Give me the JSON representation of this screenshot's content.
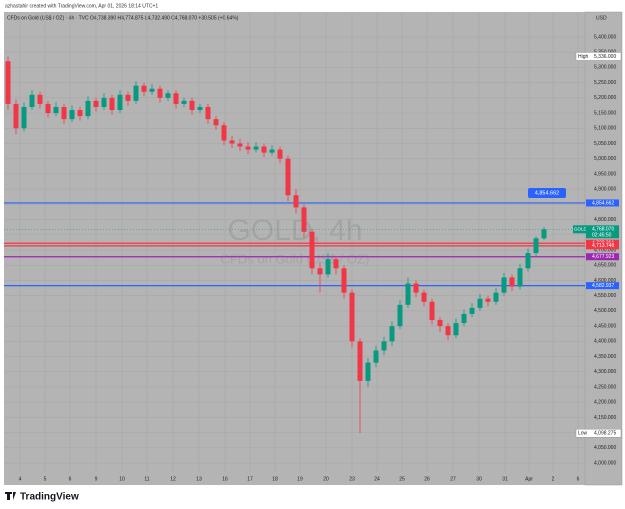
{
  "header": {
    "credit": "azhastahir created with TradingView.com, Apr 01, 2026 18:14 UTC+1",
    "legend": "CFDs on Gold (US$ / OZ) · 4h · TVC  O4,738.390 H4,774.875 L4,732.490 C4,768.070 +30.505 (+0.64%)",
    "currency": "USD",
    "brand": "TradingView"
  },
  "chart_data": {
    "type": "candlestick",
    "watermark": "GOLD, 4h",
    "watermark_sub": "CFDs on Gold (US$ / OZ)",
    "up_color": "#089981",
    "down_color": "#f23645",
    "open": [
      5320,
      5180,
      5100,
      5170,
      5210,
      5180,
      5150,
      5170,
      5130,
      5160,
      5140,
      5190,
      5170,
      5200,
      5160,
      5210,
      5190,
      5240,
      5220,
      5230,
      5200,
      5215,
      5180,
      5190,
      5160,
      5170,
      5130,
      5110,
      5060,
      5050,
      5040,
      5030,
      5040,
      5020,
      5030,
      5000,
      4880,
      4840,
      4760,
      4640,
      4620,
      4670,
      4640,
      4560,
      4400,
      4270,
      4330,
      4370,
      4400,
      4450,
      4520,
      4590,
      4560,
      4530,
      4470,
      4450,
      4420,
      4460,
      4490,
      4510,
      4540,
      4530,
      4560,
      4610,
      4580,
      4640,
      4690,
      4738.39
    ],
    "high": [
      5336,
      5195,
      5185,
      5225,
      5220,
      5190,
      5185,
      5180,
      5175,
      5170,
      5205,
      5200,
      5215,
      5210,
      5225,
      5220,
      5255,
      5250,
      5245,
      5240,
      5225,
      5225,
      5200,
      5200,
      5180,
      5180,
      5140,
      5120,
      5075,
      5065,
      5055,
      5055,
      5050,
      5045,
      5040,
      5010,
      4900,
      4850,
      4770,
      4660,
      4690,
      4680,
      4650,
      4570,
      4410,
      4345,
      4385,
      4415,
      4465,
      4535,
      4610,
      4600,
      4570,
      4540,
      4480,
      4460,
      4475,
      4505,
      4525,
      4555,
      4550,
      4575,
      4625,
      4620,
      4655,
      4705,
      4745,
      4774.875
    ],
    "low": [
      5160,
      5080,
      5090,
      5160,
      5165,
      5135,
      5140,
      5115,
      5120,
      5125,
      5130,
      5155,
      5160,
      5145,
      5150,
      5175,
      5180,
      5205,
      5210,
      5185,
      5190,
      5165,
      5170,
      5145,
      5150,
      5115,
      5095,
      5045,
      5035,
      5025,
      5015,
      5020,
      5005,
      5010,
      4985,
      4860,
      4820,
      4740,
      4620,
      4560,
      4610,
      4620,
      4540,
      4380,
      4098.275,
      4250,
      4315,
      4355,
      4385,
      4440,
      4510,
      4545,
      4515,
      4455,
      4430,
      4405,
      4410,
      4450,
      4480,
      4500,
      4515,
      4520,
      4550,
      4565,
      4570,
      4630,
      4680,
      4732.49
    ],
    "close": [
      5180,
      5100,
      5170,
      5210,
      5180,
      5150,
      5170,
      5130,
      5160,
      5140,
      5190,
      5170,
      5200,
      5160,
      5210,
      5190,
      5240,
      5220,
      5230,
      5200,
      5215,
      5180,
      5190,
      5160,
      5170,
      5130,
      5110,
      5060,
      5050,
      5040,
      5030,
      5040,
      5020,
      5030,
      5000,
      4880,
      4840,
      4760,
      4640,
      4620,
      4670,
      4640,
      4560,
      4400,
      4270,
      4330,
      4370,
      4400,
      4450,
      4520,
      4590,
      4560,
      4530,
      4470,
      4450,
      4420,
      4460,
      4490,
      4510,
      4540,
      4530,
      4560,
      4610,
      4580,
      4640,
      4690,
      4738.39,
      4768.07
    ],
    "xticks": [
      "4",
      "5",
      "6",
      "9",
      "10",
      "11",
      "12",
      "13",
      "16",
      "17",
      "18",
      "19",
      "20",
      "23",
      "24",
      "25",
      "26",
      "27",
      "30",
      "31",
      "Apr",
      "2",
      "6"
    ],
    "ylim": [
      3951,
      5482
    ],
    "yticks": [
      {
        "value": 4000,
        "label": "4,000.000"
      },
      {
        "value": 4050,
        "label": "4,050.000"
      },
      {
        "value": 4100,
        "label": "4,100.000"
      },
      {
        "value": 4150,
        "label": "4,150.000"
      },
      {
        "value": 4200,
        "label": "4,200.000"
      },
      {
        "value": 4250,
        "label": "4,250.000"
      },
      {
        "value": 4300,
        "label": "4,300.000"
      },
      {
        "value": 4350,
        "label": "4,350.000"
      },
      {
        "value": 4400,
        "label": "4,400.000"
      },
      {
        "value": 4450,
        "label": "4,450.000"
      },
      {
        "value": 4500,
        "label": "4,500.000"
      },
      {
        "value": 4550,
        "label": "4,550.000"
      },
      {
        "value": 4600,
        "label": "4,600.000"
      },
      {
        "value": 4650,
        "label": "4,650.000"
      },
      {
        "value": 4700,
        "label": "4,700.000"
      },
      {
        "value": 4750,
        "label": "4,750.000"
      },
      {
        "value": 4800,
        "label": "4,800.000"
      },
      {
        "value": 4850,
        "label": "4,850.000"
      },
      {
        "value": 4900,
        "label": "4,900.000"
      },
      {
        "value": 4950,
        "label": "4,950.000"
      },
      {
        "value": 5000,
        "label": "5,000.000"
      },
      {
        "value": 5050,
        "label": "5,050.000"
      },
      {
        "value": 5100,
        "label": "5,100.000"
      },
      {
        "value": 5150,
        "label": "5,150.000"
      },
      {
        "value": 5200,
        "label": "5,200.000"
      },
      {
        "value": 5250,
        "label": "5,250.000"
      },
      {
        "value": 5300,
        "label": "5,300.000"
      },
      {
        "value": 5350,
        "label": "5,350.000"
      },
      {
        "value": 5400,
        "label": "5,400.000"
      }
    ],
    "grid": true,
    "levels": [
      {
        "value": 4854.662,
        "label": "4,854.662",
        "color": "#2962ff"
      },
      {
        "value": 4722.361,
        "label": "4,722.361",
        "color": "#f23645"
      },
      {
        "value": 4713.748,
        "label": "4,713.748",
        "color": "#f23645"
      },
      {
        "value": 4677.923,
        "label": "4,677.923",
        "color": "#9c27b0"
      },
      {
        "value": 4582.937,
        "label": "4,582.937",
        "color": "#2962ff"
      }
    ],
    "extremes": [
      {
        "label": "High",
        "value": 5336,
        "value_label": "5,336.000"
      },
      {
        "label": "Low",
        "value": 4098.275,
        "value_label": "4,098.275"
      }
    ],
    "last": {
      "symbol": "GOLD",
      "value": 4768.07,
      "value_label": "4,768.070",
      "countdown": "02:45:50"
    }
  }
}
